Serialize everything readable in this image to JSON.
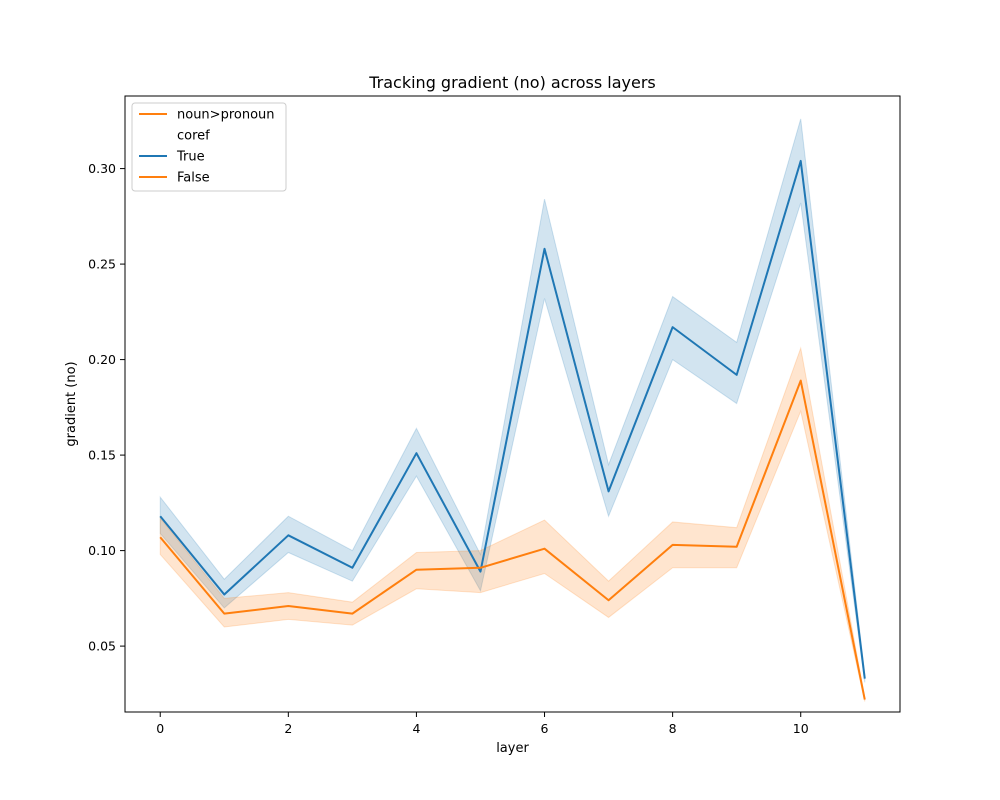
{
  "chart_data": {
    "type": "line",
    "title": "Tracking gradient (no) across layers",
    "xlabel": "layer",
    "ylabel": "gradient (no)",
    "xlim": [
      -0.55,
      11.55
    ],
    "ylim": [
      0.0155,
      0.338
    ],
    "xticks": [
      0,
      2,
      4,
      6,
      8,
      10
    ],
    "yticks": [
      0.05,
      0.1,
      0.15,
      0.2,
      0.25,
      0.3
    ],
    "grid": false,
    "legend": {
      "placement": "top-left",
      "entries": [
        {
          "label": "noun>pronoun",
          "color": "#ff7f0e",
          "swatch": true
        },
        {
          "label": "coref",
          "color": "",
          "swatch": false
        },
        {
          "label": "True",
          "color": "#1f77b4",
          "swatch": true
        },
        {
          "label": "False",
          "color": "#ff7f0e",
          "swatch": true
        }
      ]
    },
    "x": [
      0,
      1,
      2,
      3,
      4,
      5,
      6,
      7,
      8,
      9,
      10,
      11
    ],
    "series": [
      {
        "name": "True",
        "color": "#1f77b4",
        "values": [
          0.118,
          0.077,
          0.108,
          0.091,
          0.151,
          0.089,
          0.258,
          0.131,
          0.217,
          0.192,
          0.304,
          0.033
        ],
        "lower": [
          0.109,
          0.07,
          0.099,
          0.084,
          0.139,
          0.079,
          0.232,
          0.118,
          0.2,
          0.177,
          0.282,
          0.031
        ],
        "upper": [
          0.128,
          0.085,
          0.118,
          0.1,
          0.164,
          0.098,
          0.284,
          0.145,
          0.233,
          0.209,
          0.326,
          0.035
        ]
      },
      {
        "name": "False",
        "color": "#ff7f0e",
        "values": [
          0.107,
          0.067,
          0.071,
          0.067,
          0.09,
          0.091,
          0.101,
          0.074,
          0.103,
          0.102,
          0.189,
          0.022
        ],
        "lower": [
          0.098,
          0.06,
          0.064,
          0.061,
          0.08,
          0.078,
          0.088,
          0.065,
          0.091,
          0.091,
          0.173,
          0.021
        ],
        "upper": [
          0.117,
          0.075,
          0.078,
          0.073,
          0.099,
          0.1,
          0.116,
          0.084,
          0.115,
          0.112,
          0.206,
          0.023
        ]
      }
    ]
  }
}
